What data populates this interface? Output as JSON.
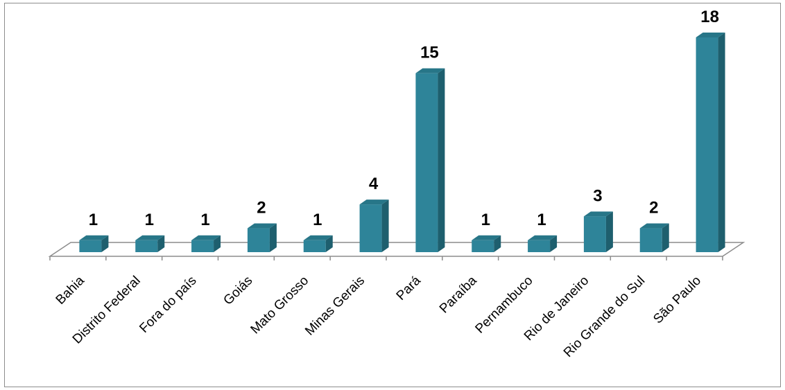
{
  "chart_data": {
    "type": "bar",
    "categories": [
      "Bahia",
      "Distrito Federal",
      "Fora do país",
      "Goiás",
      "Mato Grosso",
      "Minas Gerais",
      "Pará",
      "Paraíba",
      "Pernambuco",
      "Rio de Janeiro",
      "Rio Grande do Sul",
      "São Paulo"
    ],
    "values": [
      1,
      1,
      1,
      2,
      1,
      4,
      15,
      1,
      1,
      3,
      2,
      18
    ],
    "data_labels": [
      "1",
      "1",
      "1",
      "2",
      "1",
      "4",
      "15",
      "1",
      "1",
      "3",
      "2",
      "18"
    ],
    "title": "",
    "xlabel": "",
    "ylabel": "",
    "ylim": [
      0,
      18
    ],
    "style": "3d-column",
    "grid": false,
    "legend": "none",
    "colors": {
      "front": "#2e8499",
      "side": "#1e5f6e",
      "top": "#277688",
      "axis": "#8c8c8c"
    }
  }
}
